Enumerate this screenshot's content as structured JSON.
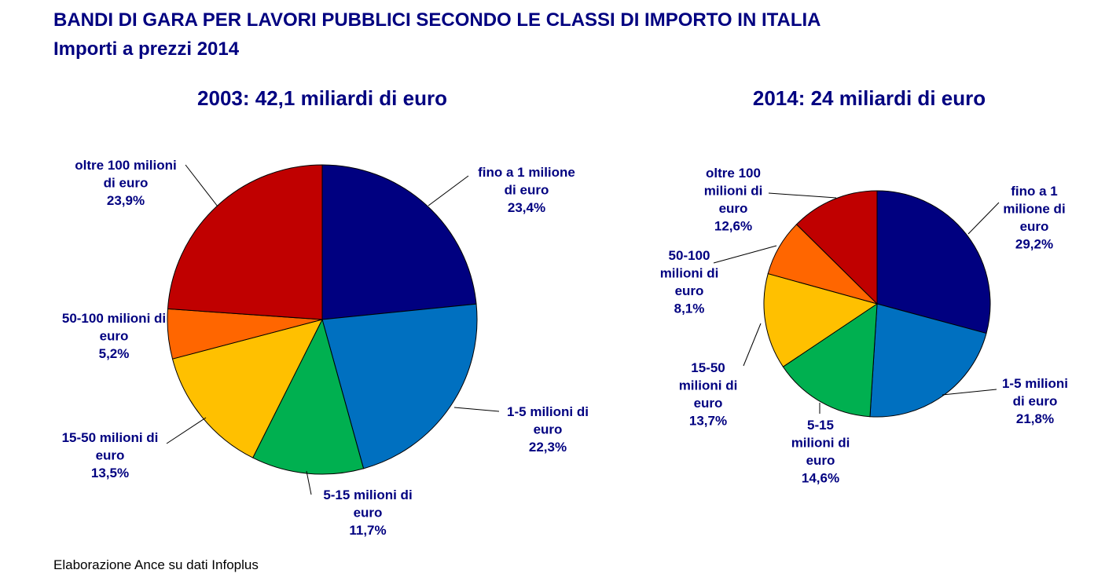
{
  "title": "BANDI DI GARA PER LAVORI PUBBLICI SECONDO LE CLASSI DI IMPORTO IN ITALIA",
  "subtitle": "Importi a prezzi 2014",
  "source": "Elaborazione Ance su dati Infoplus",
  "chart_data": [
    {
      "type": "pie",
      "title": "2003: 42,1 miliardi di euro",
      "categories": [
        "fino a 1 milione di euro",
        "1-5 milioni di euro",
        "5-15 milioni di euro",
        "15-50 milioni di euro",
        "50-100 milioni di euro",
        "oltre 100 milioni di euro"
      ],
      "values": [
        23.4,
        22.3,
        11.7,
        13.5,
        5.2,
        23.9
      ],
      "colors": [
        "#000080",
        "#0070C0",
        "#00B050",
        "#FFC000",
        "#FF6600",
        "#C00000"
      ],
      "labels": [
        [
          "fino a 1 milione",
          "di euro",
          "23,4%"
        ],
        [
          "1-5 milioni di",
          "euro",
          "22,3%"
        ],
        [
          "5-15 milioni di",
          "euro",
          "11,7%"
        ],
        [
          "15-50 milioni di",
          "euro",
          "13,5%"
        ],
        [
          "50-100 milioni di",
          "euro",
          "5,2%"
        ],
        [
          "oltre 100 milioni",
          "di euro",
          "23,9%"
        ]
      ]
    },
    {
      "type": "pie",
      "title": "2014: 24 miliardi di euro",
      "categories": [
        "fino a 1 milione di euro",
        "1-5 milioni di euro",
        "5-15 milioni di euro",
        "15-50 milioni di euro",
        "50-100 milioni di euro",
        "oltre 100 milioni di euro"
      ],
      "values": [
        29.2,
        21.8,
        14.6,
        13.7,
        8.1,
        12.6
      ],
      "colors": [
        "#000080",
        "#0070C0",
        "#00B050",
        "#FFC000",
        "#FF6600",
        "#C00000"
      ],
      "labels": [
        [
          "fino a 1",
          "milione di",
          "euro",
          "29,2%"
        ],
        [
          "1-5 milioni",
          "di euro",
          "21,8%"
        ],
        [
          "5-15",
          "milioni di",
          "euro",
          "14,6%"
        ],
        [
          "15-50",
          "milioni di",
          "euro",
          "13,7%"
        ],
        [
          "50-100",
          "milioni di",
          "euro",
          "8,1%"
        ],
        [
          "oltre 100",
          "milioni di",
          "euro",
          "12,6%"
        ]
      ]
    }
  ]
}
